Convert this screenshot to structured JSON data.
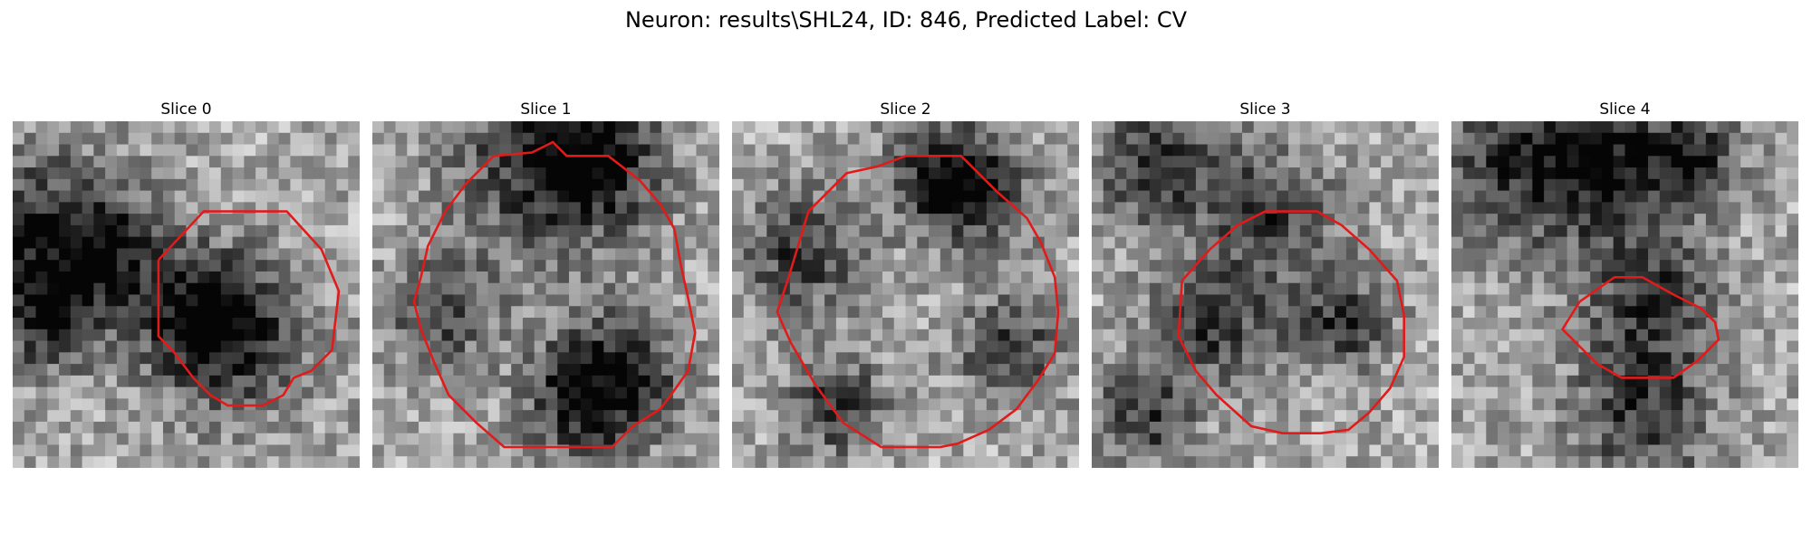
{
  "figure": {
    "title": "Neuron: results\\SHL24, ID: 846, Predicted Label: CV"
  },
  "panels": [
    {
      "title": "Slice 0",
      "contour_color": "#e11a1a",
      "dark_features": [
        [
          0.06,
          0.32,
          0.18
        ],
        [
          0.27,
          0.38,
          0.12
        ],
        [
          0.63,
          0.63,
          0.16
        ],
        [
          0.55,
          0.55,
          0.12
        ],
        [
          0.1,
          0.58,
          0.1
        ]
      ],
      "contour": [
        [
          0.42,
          0.4
        ],
        [
          0.55,
          0.26
        ],
        [
          0.79,
          0.26
        ],
        [
          0.89,
          0.37
        ],
        [
          0.94,
          0.49
        ],
        [
          0.92,
          0.66
        ],
        [
          0.86,
          0.72
        ],
        [
          0.81,
          0.74
        ],
        [
          0.78,
          0.79
        ],
        [
          0.72,
          0.82
        ],
        [
          0.68,
          0.82
        ],
        [
          0.62,
          0.82
        ],
        [
          0.57,
          0.79
        ],
        [
          0.52,
          0.74
        ],
        [
          0.46,
          0.66
        ],
        [
          0.42,
          0.62
        ],
        [
          0.42,
          0.4
        ]
      ]
    },
    {
      "title": "Slice 1",
      "contour_color": "#e11a1a",
      "dark_features": [
        [
          0.5,
          0.12,
          0.2
        ],
        [
          0.64,
          0.1,
          0.12
        ],
        [
          0.72,
          0.72,
          0.13
        ],
        [
          0.6,
          0.82,
          0.12
        ],
        [
          0.2,
          0.55,
          0.1
        ]
      ],
      "contour": [
        [
          0.27,
          0.18
        ],
        [
          0.35,
          0.1
        ],
        [
          0.46,
          0.09
        ],
        [
          0.52,
          0.06
        ],
        [
          0.56,
          0.1
        ],
        [
          0.68,
          0.1
        ],
        [
          0.77,
          0.17
        ],
        [
          0.83,
          0.24
        ],
        [
          0.87,
          0.31
        ],
        [
          0.89,
          0.42
        ],
        [
          0.91,
          0.51
        ],
        [
          0.93,
          0.61
        ],
        [
          0.91,
          0.72
        ],
        [
          0.86,
          0.79
        ],
        [
          0.83,
          0.83
        ],
        [
          0.75,
          0.88
        ],
        [
          0.69,
          0.94
        ],
        [
          0.38,
          0.94
        ],
        [
          0.3,
          0.87
        ],
        [
          0.22,
          0.79
        ],
        [
          0.18,
          0.7
        ],
        [
          0.14,
          0.6
        ],
        [
          0.12,
          0.52
        ],
        [
          0.14,
          0.45
        ],
        [
          0.16,
          0.36
        ],
        [
          0.21,
          0.26
        ],
        [
          0.27,
          0.18
        ]
      ]
    },
    {
      "title": "Slice 2",
      "contour_color": "#e11a1a",
      "dark_features": [
        [
          0.2,
          0.38,
          0.12
        ],
        [
          0.7,
          0.22,
          0.12
        ],
        [
          0.6,
          0.14,
          0.1
        ],
        [
          0.3,
          0.82,
          0.1
        ],
        [
          0.8,
          0.66,
          0.1
        ]
      ],
      "contour": [
        [
          0.22,
          0.26
        ],
        [
          0.33,
          0.15
        ],
        [
          0.42,
          0.13
        ],
        [
          0.5,
          0.1
        ],
        [
          0.66,
          0.1
        ],
        [
          0.76,
          0.2
        ],
        [
          0.85,
          0.28
        ],
        [
          0.89,
          0.35
        ],
        [
          0.93,
          0.45
        ],
        [
          0.94,
          0.55
        ],
        [
          0.93,
          0.67
        ],
        [
          0.88,
          0.75
        ],
        [
          0.82,
          0.83
        ],
        [
          0.74,
          0.89
        ],
        [
          0.65,
          0.93
        ],
        [
          0.6,
          0.94
        ],
        [
          0.43,
          0.94
        ],
        [
          0.32,
          0.87
        ],
        [
          0.24,
          0.76
        ],
        [
          0.17,
          0.64
        ],
        [
          0.13,
          0.55
        ],
        [
          0.16,
          0.46
        ],
        [
          0.22,
          0.26
        ]
      ]
    },
    {
      "title": "Slice 3",
      "contour_color": "#e11a1a",
      "dark_features": [
        [
          0.2,
          0.12,
          0.14
        ],
        [
          0.52,
          0.28,
          0.12
        ],
        [
          0.35,
          0.58,
          0.12
        ],
        [
          0.72,
          0.58,
          0.1
        ],
        [
          0.15,
          0.85,
          0.1
        ]
      ],
      "contour": [
        [
          0.26,
          0.46
        ],
        [
          0.34,
          0.37
        ],
        [
          0.42,
          0.3
        ],
        [
          0.5,
          0.26
        ],
        [
          0.58,
          0.26
        ],
        [
          0.65,
          0.26
        ],
        [
          0.72,
          0.3
        ],
        [
          0.8,
          0.37
        ],
        [
          0.88,
          0.46
        ],
        [
          0.9,
          0.56
        ],
        [
          0.9,
          0.68
        ],
        [
          0.86,
          0.77
        ],
        [
          0.8,
          0.84
        ],
        [
          0.74,
          0.89
        ],
        [
          0.66,
          0.9
        ],
        [
          0.55,
          0.9
        ],
        [
          0.46,
          0.88
        ],
        [
          0.36,
          0.79
        ],
        [
          0.3,
          0.72
        ],
        [
          0.25,
          0.62
        ],
        [
          0.26,
          0.46
        ]
      ]
    },
    {
      "title": "Slice 4",
      "contour_color": "#e11a1a",
      "dark_features": [
        [
          0.2,
          0.12,
          0.18
        ],
        [
          0.45,
          0.12,
          0.14
        ],
        [
          0.58,
          0.52,
          0.14
        ],
        [
          0.55,
          0.86,
          0.14
        ],
        [
          0.7,
          0.1,
          0.1
        ]
      ],
      "contour": [
        [
          0.37,
          0.52
        ],
        [
          0.47,
          0.45
        ],
        [
          0.55,
          0.45
        ],
        [
          0.64,
          0.5
        ],
        [
          0.72,
          0.54
        ],
        [
          0.76,
          0.58
        ],
        [
          0.77,
          0.63
        ],
        [
          0.71,
          0.69
        ],
        [
          0.64,
          0.74
        ],
        [
          0.57,
          0.74
        ],
        [
          0.49,
          0.74
        ],
        [
          0.42,
          0.7
        ],
        [
          0.37,
          0.65
        ],
        [
          0.32,
          0.6
        ],
        [
          0.37,
          0.52
        ]
      ]
    }
  ]
}
